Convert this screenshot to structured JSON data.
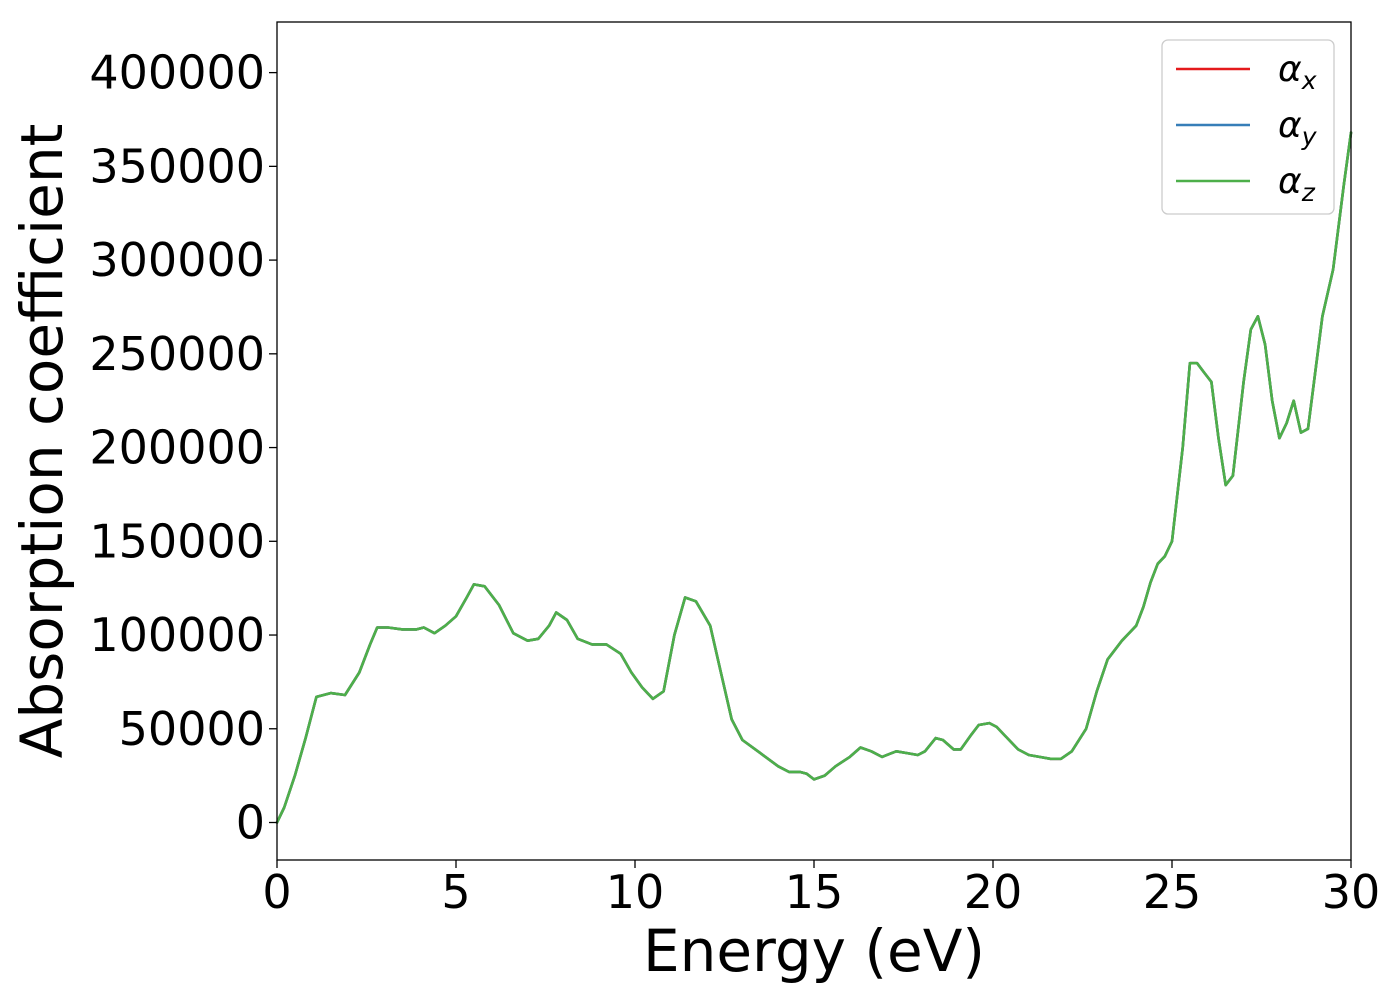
{
  "chart_data": {
    "type": "line",
    "xlabel": "Energy (eV)",
    "ylabel": "Absorption coefficient",
    "xlim": [
      0,
      30
    ],
    "ylim": [
      -20000,
      427000
    ],
    "x_ticks": [
      0,
      5,
      10,
      15,
      20,
      25,
      30
    ],
    "x_tick_labels": [
      "0",
      "5",
      "10",
      "15",
      "20",
      "25",
      "30"
    ],
    "y_ticks": [
      0,
      50000,
      100000,
      150000,
      200000,
      250000,
      300000,
      350000,
      400000
    ],
    "y_tick_labels": [
      "0",
      "50000",
      "100000",
      "150000",
      "200000",
      "250000",
      "300000",
      "350000",
      "400000"
    ],
    "grid": false,
    "legend_position": "top-right",
    "x": [
      0,
      0.2,
      0.5,
      0.8,
      1.1,
      1.5,
      1.9,
      2.3,
      2.6,
      2.8,
      3.1,
      3.5,
      3.9,
      4.1,
      4.4,
      4.7,
      5.0,
      5.3,
      5.5,
      5.8,
      6.2,
      6.6,
      7.0,
      7.3,
      7.6,
      7.8,
      8.1,
      8.4,
      8.8,
      9.2,
      9.6,
      9.9,
      10.2,
      10.5,
      10.8,
      11.1,
      11.4,
      11.7,
      12.1,
      12.4,
      12.7,
      13.0,
      13.5,
      14.0,
      14.3,
      14.6,
      14.8,
      15.0,
      15.3,
      15.6,
      16.0,
      16.3,
      16.6,
      16.9,
      17.3,
      17.6,
      17.9,
      18.1,
      18.4,
      18.6,
      18.9,
      19.1,
      19.4,
      19.6,
      19.9,
      20.1,
      20.4,
      20.7,
      21.0,
      21.3,
      21.6,
      21.9,
      22.2,
      22.6,
      22.9,
      23.2,
      23.6,
      24.0,
      24.2,
      24.4,
      24.6,
      24.8,
      25.0,
      25.3,
      25.5,
      25.7,
      25.9,
      26.1,
      26.3,
      26.5,
      26.7,
      27.0,
      27.2,
      27.4,
      27.6,
      27.8,
      28.0,
      28.2,
      28.4,
      28.6,
      28.8,
      29.0,
      29.2,
      29.5,
      29.8,
      30.0
    ],
    "series": [
      {
        "name": "αx",
        "color": "#e41a1c",
        "values": [
          0,
          8000,
          25000,
          45000,
          67000,
          69000,
          68000,
          80000,
          95000,
          104000,
          104000,
          103000,
          103000,
          104000,
          101000,
          105000,
          110000,
          120000,
          127000,
          126000,
          116000,
          101000,
          97000,
          98000,
          105000,
          112000,
          108000,
          98000,
          95000,
          95000,
          90000,
          80000,
          72000,
          66000,
          70000,
          100000,
          120000,
          118000,
          105000,
          80000,
          55000,
          44000,
          37000,
          30000,
          27000,
          27000,
          26000,
          23000,
          25000,
          30000,
          35000,
          40000,
          38000,
          35000,
          38000,
          37000,
          36000,
          38000,
          45000,
          44000,
          39000,
          39000,
          47000,
          52000,
          53000,
          51000,
          45000,
          39000,
          36000,
          35000,
          34000,
          34000,
          38000,
          50000,
          70000,
          87000,
          97000,
          105000,
          115000,
          128000,
          138000,
          142000,
          150000,
          200000,
          245000,
          245000,
          240000,
          235000,
          205000,
          180000,
          185000,
          235000,
          263000,
          270000,
          255000,
          225000,
          205000,
          213000,
          225000,
          208000,
          210000,
          240000,
          270000,
          295000,
          340000,
          368000
        ]
      },
      {
        "name": "αy",
        "color": "#377eb8",
        "values": [
          0,
          8000,
          25000,
          45000,
          67000,
          69000,
          68000,
          80000,
          95000,
          104000,
          104000,
          103000,
          103000,
          104000,
          101000,
          105000,
          110000,
          120000,
          127000,
          126000,
          116000,
          101000,
          97000,
          98000,
          105000,
          112000,
          108000,
          98000,
          95000,
          95000,
          90000,
          80000,
          72000,
          66000,
          70000,
          100000,
          120000,
          118000,
          105000,
          80000,
          55000,
          44000,
          37000,
          30000,
          27000,
          27000,
          26000,
          23000,
          25000,
          30000,
          35000,
          40000,
          38000,
          35000,
          38000,
          37000,
          36000,
          38000,
          45000,
          44000,
          39000,
          39000,
          47000,
          52000,
          53000,
          51000,
          45000,
          39000,
          36000,
          35000,
          34000,
          34000,
          38000,
          50000,
          70000,
          87000,
          97000,
          105000,
          115000,
          128000,
          138000,
          142000,
          150000,
          200000,
          245000,
          245000,
          240000,
          235000,
          205000,
          180000,
          185000,
          235000,
          263000,
          270000,
          255000,
          225000,
          205000,
          213000,
          225000,
          208000,
          210000,
          240000,
          270000,
          295000,
          340000,
          368000
        ]
      },
      {
        "name": "αz",
        "color": "#4daf4a",
        "values": [
          0,
          8000,
          25000,
          45000,
          67000,
          69000,
          68000,
          80000,
          95000,
          104000,
          104000,
          103000,
          103000,
          104000,
          101000,
          105000,
          110000,
          120000,
          127000,
          126000,
          116000,
          101000,
          97000,
          98000,
          105000,
          112000,
          108000,
          98000,
          95000,
          95000,
          90000,
          80000,
          72000,
          66000,
          70000,
          100000,
          120000,
          118000,
          105000,
          80000,
          55000,
          44000,
          37000,
          30000,
          27000,
          27000,
          26000,
          23000,
          25000,
          30000,
          35000,
          40000,
          38000,
          35000,
          38000,
          37000,
          36000,
          38000,
          45000,
          44000,
          39000,
          39000,
          47000,
          52000,
          53000,
          51000,
          45000,
          39000,
          36000,
          35000,
          34000,
          34000,
          38000,
          50000,
          70000,
          87000,
          97000,
          105000,
          115000,
          128000,
          138000,
          142000,
          150000,
          200000,
          245000,
          245000,
          240000,
          235000,
          205000,
          180000,
          185000,
          235000,
          263000,
          270000,
          255000,
          225000,
          205000,
          213000,
          225000,
          208000,
          210000,
          240000,
          270000,
          295000,
          340000,
          368000
        ]
      }
    ]
  }
}
